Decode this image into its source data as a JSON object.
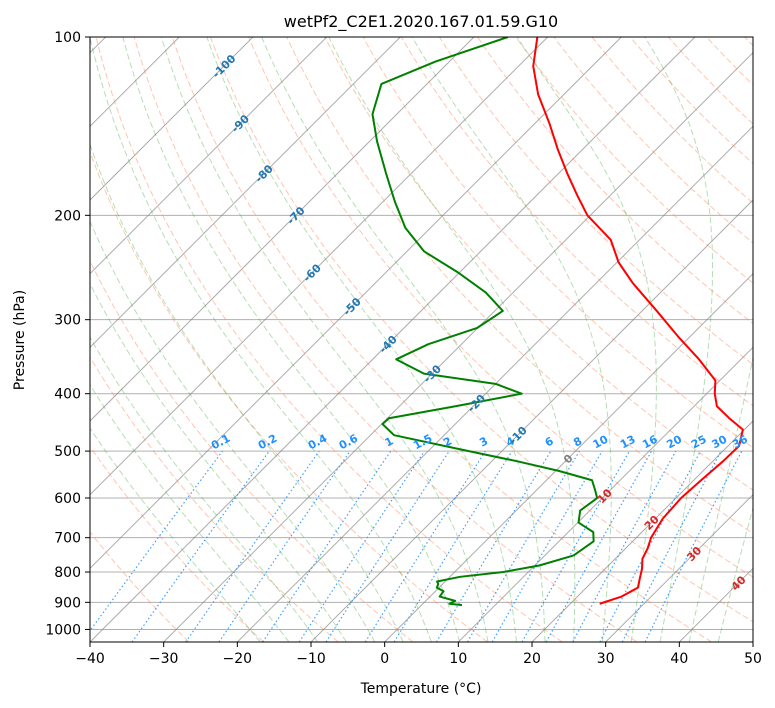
{
  "chart_data": {
    "type": "line",
    "title": "wetPf2_C2E1.2020.167.01.59.G10",
    "xlabel": "Temperature (°C)",
    "ylabel": "Pressure (hPa)",
    "xlim": [
      -40,
      50
    ],
    "ylim": [
      1050,
      100
    ],
    "y_scale": "log",
    "grid": true,
    "x_ticks": [
      -40,
      -30,
      -20,
      -10,
      0,
      10,
      20,
      30,
      40,
      50
    ],
    "y_ticks": [
      100,
      200,
      300,
      400,
      500,
      600,
      700,
      800,
      900,
      1000
    ],
    "colors": {
      "temperature": "#ff0000",
      "dewpoint": "#008000",
      "dry_adiabats": "#ff7f50",
      "moist_adiabats": "#2ca02c",
      "mixing_ratio": "#1e90ff",
      "isotherms": "#808080",
      "isotherm_label_cold": "#1f77b4",
      "isotherm_label_warm": "#d62728",
      "isotherm_label_zero": "#808080"
    },
    "series": [
      {
        "key": "temperature",
        "pressure": [
          905,
          880,
          850,
          820,
          790,
          760,
          730,
          700,
          650,
          600,
          560,
          520,
          490,
          460,
          440,
          420,
          400,
          380,
          350,
          320,
          290,
          260,
          240,
          220,
          200,
          185,
          170,
          155,
          140,
          125,
          112,
          100
        ],
        "temperature": [
          24,
          26,
          27,
          26,
          25,
          23.7,
          23,
          22,
          21,
          20.7,
          21.0,
          21.4,
          21.5,
          19.8,
          16.4,
          13.1,
          11.1,
          9.4,
          4.3,
          -1.7,
          -8.0,
          -15.1,
          -19.8,
          -23.9,
          -30.4,
          -34.5,
          -38.8,
          -43.3,
          -48.0,
          -53.5,
          -58.0,
          -61.4
        ]
      },
      {
        "key": "dewpoint",
        "pressure": [
          910,
          905,
          895,
          880,
          862,
          850,
          838,
          830,
          815,
          800,
          780,
          750,
          710,
          685,
          660,
          630,
          600,
          580,
          560,
          540,
          520,
          500,
          470,
          450,
          440,
          420,
          400,
          385,
          370,
          350,
          330,
          310,
          290,
          270,
          250,
          230,
          210,
          190,
          170,
          150,
          135,
          120,
          110,
          100
        ],
        "temperature": [
          5.5,
          3.6,
          4.0,
          1.3,
          1.1,
          -0.3,
          -0.6,
          -1.1,
          1.4,
          6.6,
          10.6,
          13.9,
          14.7,
          13.4,
          10.1,
          8.7,
          9.3,
          7.8,
          6.2,
          0.4,
          -6.6,
          -14.5,
          -26.8,
          -29.9,
          -29.8,
          -22.4,
          -15.1,
          -20.0,
          -31.1,
          -36.8,
          -34.5,
          -30.1,
          -28.9,
          -33.7,
          -40.1,
          -47.7,
          -53.4,
          -58.3,
          -63.4,
          -69.0,
          -73.3,
          -76.2,
          -71.9,
          -65.4
        ]
      }
    ],
    "isotherm_labels": [
      "-100",
      "-90",
      "-80",
      "-70",
      "-60",
      "-50",
      "-40",
      "-30",
      "-20",
      "-10",
      "0",
      "10",
      "20",
      "30",
      "40"
    ],
    "mixing_ratio_labels": [
      "0.1",
      "0.2",
      "0.4",
      "0.6",
      "1",
      "1.5",
      "2",
      "3",
      "4",
      "6",
      "8",
      "10",
      "13",
      "16",
      "20",
      "25",
      "30",
      "36"
    ]
  }
}
